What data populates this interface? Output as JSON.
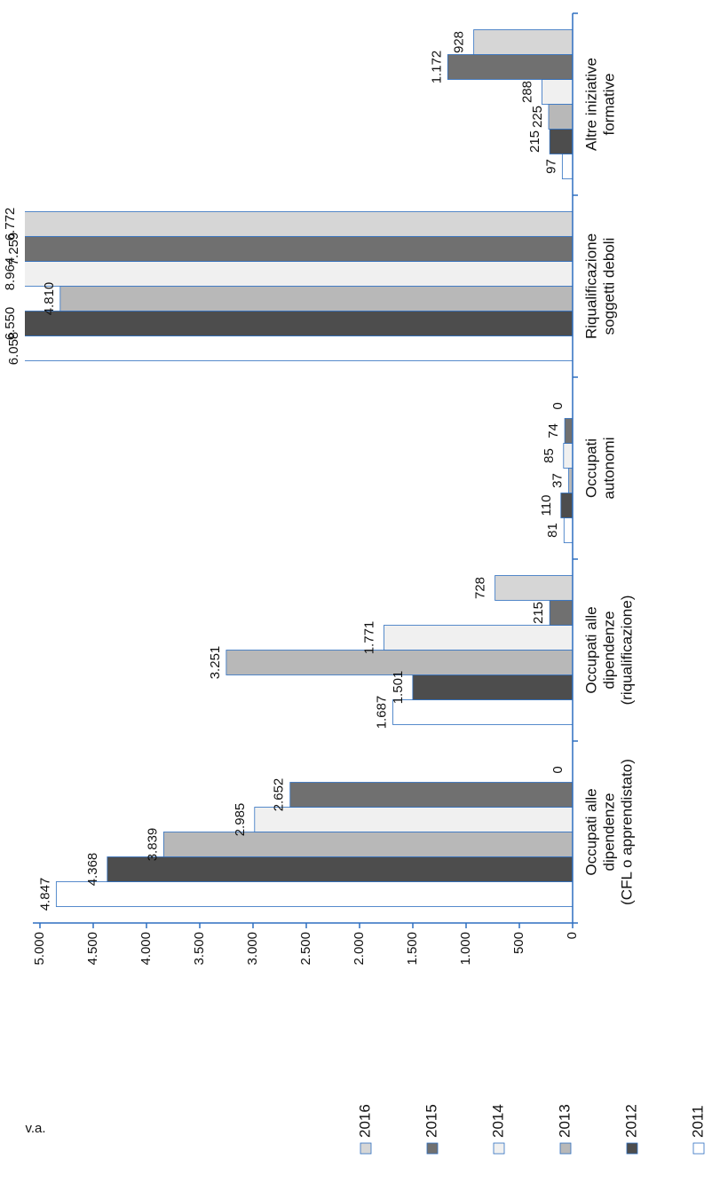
{
  "chart_data": {
    "type": "bar",
    "y_label": "v.a.",
    "categories": [
      [
        "Occupati alle",
        "dipendenze",
        "(CFL o apprendistato)"
      ],
      [
        "Occupati alle",
        "dipendenze",
        "(riqualificazione)"
      ],
      [
        "Occupati",
        "autonomi"
      ],
      [
        "Riqualificazione",
        "soggetti deboli"
      ],
      [
        "Altre iniziative",
        "formative"
      ]
    ],
    "series": [
      {
        "name": "2011",
        "color": "#ffffff",
        "values": [
          4847,
          1687,
          81,
          6058,
          97
        ],
        "value_labels": [
          "4.847",
          "1.687",
          "81",
          "6.058",
          "97"
        ]
      },
      {
        "name": "2012",
        "color": "#4d4d4d",
        "values": [
          4368,
          1501,
          110,
          6550,
          215
        ],
        "value_labels": [
          "4.368",
          "1.501",
          "110",
          "6.550",
          "215"
        ]
      },
      {
        "name": "2013",
        "color": "#b8b8b8",
        "values": [
          3839,
          3251,
          37,
          4810,
          225
        ],
        "value_labels": [
          "3.839",
          "3.251",
          "37",
          "4.810",
          "225"
        ]
      },
      {
        "name": "2014",
        "color": "#f0f0f0",
        "values": [
          2985,
          1771,
          85,
          8964,
          288
        ],
        "value_labels": [
          "2.985",
          "1.771",
          "85",
          "8.964",
          "288"
        ]
      },
      {
        "name": "2015",
        "color": "#707070",
        "values": [
          2652,
          215,
          74,
          7259,
          1172
        ],
        "value_labels": [
          "2.652",
          "215",
          "74",
          "7.259",
          "1.172"
        ]
      },
      {
        "name": "2016",
        "color": "#d6d6d6",
        "values": [
          0,
          728,
          0,
          6772,
          928
        ],
        "value_labels": [
          "0",
          "728",
          "0",
          "6.772",
          "928"
        ]
      }
    ],
    "ylim": [
      0,
      5000
    ],
    "yticks": [
      0,
      {
        "value": 500,
        "label": "500"
      },
      {
        "value": 1000,
        "label": "1.000"
      },
      {
        "value": 1500,
        "label": "1.500"
      },
      {
        "value": 2000,
        "label": "2.000"
      },
      {
        "value": 2500,
        "label": "2.500"
      },
      {
        "value": 3000,
        "label": "3.000"
      },
      {
        "value": 3500,
        "label": "3.500"
      },
      {
        "value": 4000,
        "label": "4.000"
      },
      {
        "value": 4500,
        "label": "4.500"
      },
      {
        "value": 5000,
        "label": "5.000"
      }
    ],
    "grid": false,
    "legend": "bottom"
  }
}
